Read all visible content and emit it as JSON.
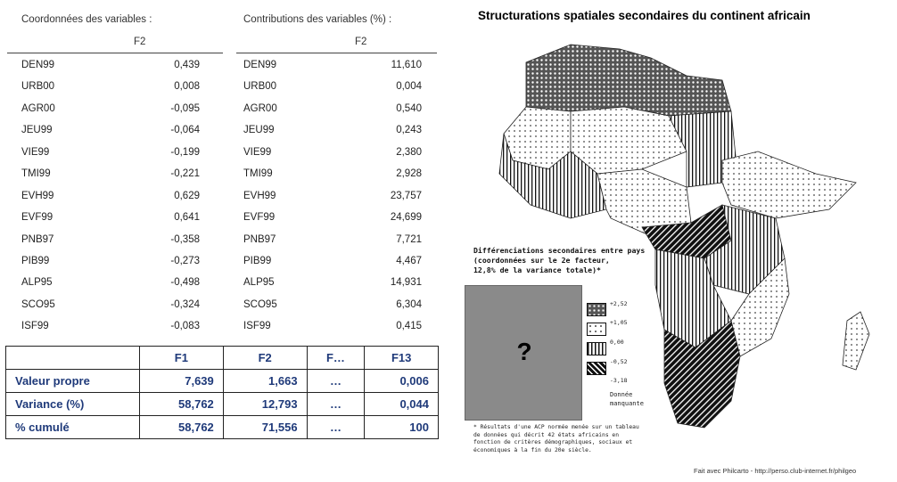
{
  "coords": {
    "title": "Coordonnées des variables :",
    "column": "F2",
    "rows": [
      {
        "label": "DEN99",
        "value": "0,439"
      },
      {
        "label": "URB00",
        "value": "0,008"
      },
      {
        "label": "AGR00",
        "value": "-0,095"
      },
      {
        "label": "JEU99",
        "value": "-0,064"
      },
      {
        "label": "VIE99",
        "value": "-0,199"
      },
      {
        "label": "TMI99",
        "value": "-0,221"
      },
      {
        "label": "EVH99",
        "value": "0,629"
      },
      {
        "label": "EVF99",
        "value": "0,641"
      },
      {
        "label": "PNB97",
        "value": "-0,358"
      },
      {
        "label": "PIB99",
        "value": "-0,273"
      },
      {
        "label": "ALP95",
        "value": "-0,498"
      },
      {
        "label": "SCO95",
        "value": "-0,324"
      },
      {
        "label": "ISF99",
        "value": "-0,083"
      }
    ]
  },
  "contribs": {
    "title": "Contributions des variables (%) :",
    "column": "F2",
    "rows": [
      {
        "label": "DEN99",
        "value": "11,610"
      },
      {
        "label": "URB00",
        "value": "0,004"
      },
      {
        "label": "AGR00",
        "value": "0,540"
      },
      {
        "label": "JEU99",
        "value": "0,243"
      },
      {
        "label": "VIE99",
        "value": "2,380"
      },
      {
        "label": "TMI99",
        "value": "2,928"
      },
      {
        "label": "EVH99",
        "value": "23,757"
      },
      {
        "label": "EVF99",
        "value": "24,699"
      },
      {
        "label": "PNB97",
        "value": "7,721"
      },
      {
        "label": "PIB99",
        "value": "4,467"
      },
      {
        "label": "ALP95",
        "value": "14,931"
      },
      {
        "label": "SCO95",
        "value": "6,304"
      },
      {
        "label": "ISF99",
        "value": "0,415"
      }
    ]
  },
  "eigen_table": {
    "headers": [
      "F1",
      "F2",
      "F…",
      "F13"
    ],
    "rows": [
      {
        "label": "Valeur propre",
        "values": [
          "7,639",
          "1,663",
          "…",
          "0,006"
        ]
      },
      {
        "label": "Variance (%)",
        "values": [
          "58,762",
          "12,793",
          "…",
          "0,044"
        ]
      },
      {
        "label": "% cumulé",
        "values": [
          "58,762",
          "71,556",
          "…",
          "100"
        ]
      }
    ]
  },
  "map": {
    "title": "Structurations spatiales secondaires du continent africain",
    "legend_title": "Différenciations secondaires entre pays\n(coordonnées sur le 2e facteur,\n12,8% de la variance totale)*",
    "question_mark": "?",
    "legend_ticks": [
      "+2,52",
      "+1,05",
      "0,00",
      "-0,52",
      "-3,18"
    ],
    "missing_label": "Donnée\nmanquante",
    "footnote": "* Résultats d'une ACP normée menée sur un tableau de données qui décrit 42 états africains en fonction de critères démographiques, sociaux et économiques à la fin du 20e siècle.",
    "credit": "Fait avec Philcarto - http://perso.club-internet.fr/philgeo"
  }
}
